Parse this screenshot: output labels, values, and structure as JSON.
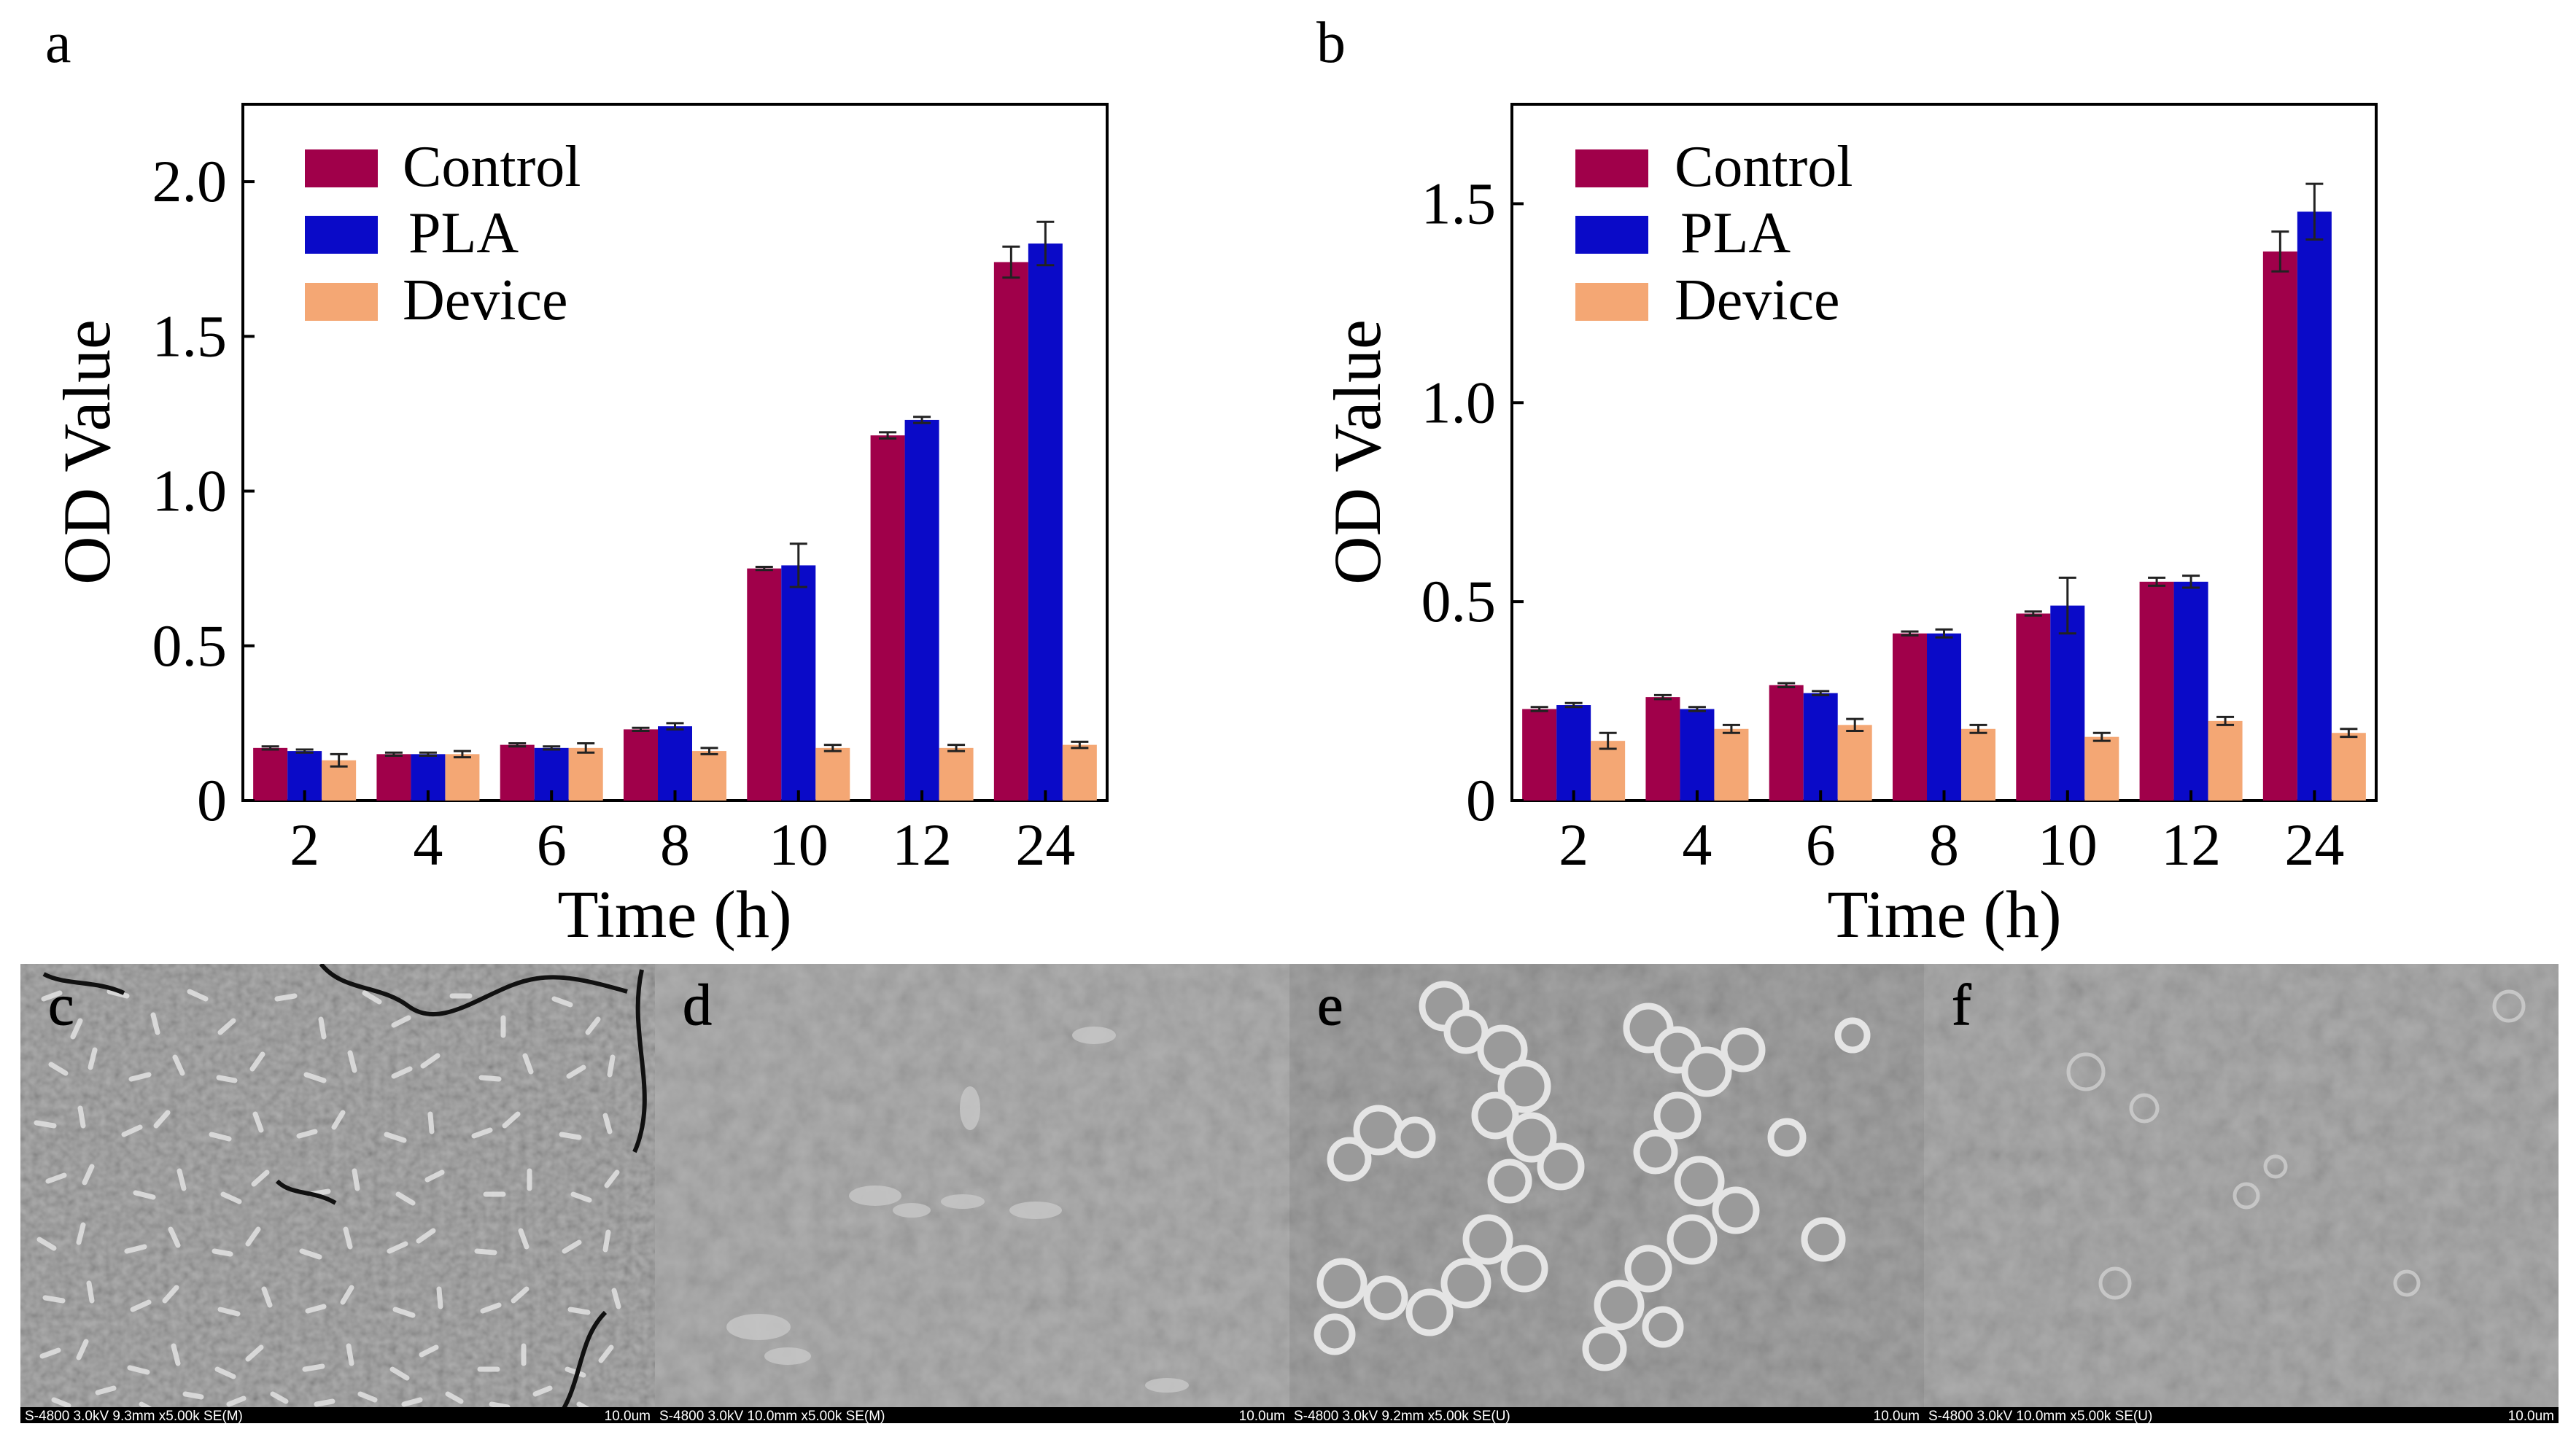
{
  "colors": {
    "control": "#A0004A",
    "pla": "#0A0AC8",
    "device": "#F4A774",
    "axis": "#000000",
    "sem_bg": "#8a8a8a"
  },
  "chart_data": [
    {
      "panel_label": "a",
      "type": "bar",
      "xlabel": "Time (h)",
      "ylabel": "OD Value",
      "categories": [
        "2",
        "4",
        "6",
        "8",
        "10",
        "12",
        "24"
      ],
      "ylim": [
        0,
        2.25
      ],
      "yticks": [
        0,
        0.5,
        1.0,
        1.5,
        2.0
      ],
      "ytick_labels": [
        "0",
        "0.5",
        "1.0",
        "1.5",
        "2.0"
      ],
      "legend_position": "top-left",
      "series": [
        {
          "name": "Control",
          "color_key": "control",
          "values": [
            0.17,
            0.15,
            0.18,
            0.23,
            0.75,
            1.18,
            1.74
          ],
          "errors": [
            0.005,
            0.005,
            0.005,
            0.005,
            0.005,
            0.01,
            0.05
          ]
        },
        {
          "name": "PLA",
          "color_key": "pla",
          "values": [
            0.16,
            0.15,
            0.17,
            0.24,
            0.76,
            1.23,
            1.8
          ],
          "errors": [
            0.005,
            0.005,
            0.005,
            0.01,
            0.07,
            0.01,
            0.07
          ]
        },
        {
          "name": "Device",
          "color_key": "device",
          "values": [
            0.13,
            0.15,
            0.17,
            0.16,
            0.17,
            0.17,
            0.18
          ],
          "errors": [
            0.02,
            0.01,
            0.015,
            0.01,
            0.01,
            0.01,
            0.01
          ]
        }
      ]
    },
    {
      "panel_label": "b",
      "type": "bar",
      "xlabel": "Time (h)",
      "ylabel": "OD Value",
      "categories": [
        "2",
        "4",
        "6",
        "8",
        "10",
        "12",
        "24"
      ],
      "ylim": [
        0,
        1.75
      ],
      "yticks": [
        0,
        0.5,
        1.0,
        1.5
      ],
      "ytick_labels": [
        "0",
        "0.5",
        "1.0",
        "1.5"
      ],
      "legend_position": "top-left",
      "series": [
        {
          "name": "Control",
          "color_key": "control",
          "values": [
            0.23,
            0.26,
            0.29,
            0.42,
            0.47,
            0.55,
            1.38
          ],
          "errors": [
            0.005,
            0.005,
            0.005,
            0.005,
            0.005,
            0.01,
            0.05
          ]
        },
        {
          "name": "PLA",
          "color_key": "pla",
          "values": [
            0.24,
            0.23,
            0.27,
            0.42,
            0.49,
            0.55,
            1.48
          ],
          "errors": [
            0.005,
            0.005,
            0.005,
            0.01,
            0.07,
            0.015,
            0.07
          ]
        },
        {
          "name": "Device",
          "color_key": "device",
          "values": [
            0.15,
            0.18,
            0.19,
            0.18,
            0.16,
            0.2,
            0.17
          ],
          "errors": [
            0.02,
            0.01,
            0.015,
            0.01,
            0.01,
            0.01,
            0.01
          ]
        }
      ]
    }
  ],
  "sem_panels": [
    {
      "label": "c",
      "footer_left": "S-4800 3.0kV 9.3mm x5.00k SE(M)",
      "footer_right": "10.0um"
    },
    {
      "label": "d",
      "footer_left": "S-4800 3.0kV 10.0mm x5.00k SE(M)",
      "footer_right": "10.0um"
    },
    {
      "label": "e",
      "footer_left": "S-4800 3.0kV 9.2mm x5.00k SE(U)",
      "footer_right": "10.0um"
    },
    {
      "label": "f",
      "footer_left": "S-4800 3.0kV 10.0mm x5.00k SE(U)",
      "footer_right": "10.0um"
    }
  ]
}
